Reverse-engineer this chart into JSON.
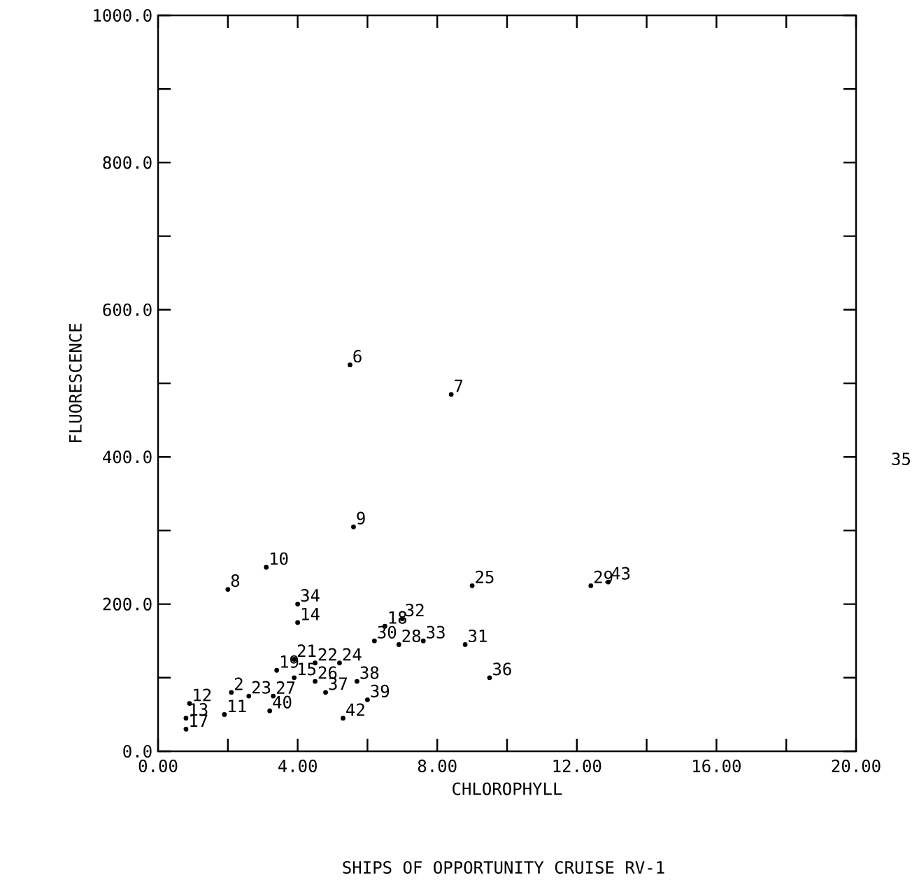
{
  "chart_data": {
    "type": "scatter",
    "title": "SHIPS OF OPPORTUNITY CRUISE  RV-1",
    "xlabel": "CHLOROPHYLL",
    "ylabel": "FLUORESCENCE",
    "marker": "circle",
    "grid": false,
    "xlim": [
      0,
      20
    ],
    "ylim": [
      0,
      1000
    ],
    "xticks": [
      {
        "value": 0,
        "label": "0.00"
      },
      {
        "value": 2,
        "label": null
      },
      {
        "value": 4,
        "label": "4.00"
      },
      {
        "value": 6,
        "label": null
      },
      {
        "value": 8,
        "label": "8.00"
      },
      {
        "value": 10,
        "label": null
      },
      {
        "value": 12,
        "label": "12.00"
      },
      {
        "value": 14,
        "label": null
      },
      {
        "value": 16,
        "label": "16.00"
      },
      {
        "value": 18,
        "label": null
      },
      {
        "value": 20,
        "label": "20.00"
      }
    ],
    "yticks": [
      {
        "value": 0,
        "label": "0.0"
      },
      {
        "value": 100,
        "label": null
      },
      {
        "value": 200,
        "label": "200.0"
      },
      {
        "value": 300,
        "label": null
      },
      {
        "value": 400,
        "label": "400.0"
      },
      {
        "value": 500,
        "label": null
      },
      {
        "value": 600,
        "label": "600.0"
      },
      {
        "value": 700,
        "label": null
      },
      {
        "value": 800,
        "label": "800.0"
      },
      {
        "value": 900,
        "label": null
      },
      {
        "value": 1000,
        "label": "1000.0"
      }
    ],
    "series": [
      {
        "color": "#000000",
        "x": [
          5.5,
          8.4,
          5.6,
          3.1,
          2.0,
          9.0,
          4.0,
          4.0,
          6.5,
          7.0,
          6.2,
          6.9,
          7.6,
          8.8,
          9.5,
          5.2,
          5.7,
          6.0,
          5.3,
          3.4,
          3.9,
          4.5,
          3.9,
          4.5,
          4.8,
          2.1,
          2.6,
          3.3,
          3.2,
          0.9,
          1.9,
          0.8,
          0.8,
          12.4,
          12.9
        ],
        "values": [
          525,
          485,
          305,
          250,
          220,
          225,
          200,
          175,
          170,
          180,
          150,
          145,
          150,
          145,
          100,
          120,
          95,
          70,
          45,
          110,
          125,
          120,
          100,
          95,
          80,
          80,
          75,
          75,
          55,
          65,
          50,
          45,
          30,
          225,
          230
        ]
      }
    ],
    "annotations": [
      {
        "text": "6",
        "x": 5.5,
        "y": 525
      },
      {
        "text": "7",
        "x": 8.4,
        "y": 485
      },
      {
        "text": "9",
        "x": 5.6,
        "y": 305
      },
      {
        "text": "10",
        "x": 3.1,
        "y": 250
      },
      {
        "text": "8",
        "x": 2.0,
        "y": 220
      },
      {
        "text": "25",
        "x": 9.0,
        "y": 225
      },
      {
        "text": "34",
        "x": 4.0,
        "y": 200
      },
      {
        "text": "14",
        "x": 4.0,
        "y": 175
      },
      {
        "text": "18",
        "x": 6.5,
        "y": 170
      },
      {
        "text": "32",
        "x": 7.0,
        "y": 180
      },
      {
        "text": "30",
        "x": 6.2,
        "y": 150
      },
      {
        "text": "28",
        "x": 6.9,
        "y": 145
      },
      {
        "text": "33",
        "x": 7.6,
        "y": 150
      },
      {
        "text": "31",
        "x": 8.8,
        "y": 145
      },
      {
        "text": "36",
        "x": 9.5,
        "y": 100
      },
      {
        "text": "24",
        "x": 5.2,
        "y": 120
      },
      {
        "text": "38",
        "x": 5.7,
        "y": 95
      },
      {
        "text": "39",
        "x": 6.0,
        "y": 70
      },
      {
        "text": "42",
        "x": 5.3,
        "y": 45
      },
      {
        "text": "19",
        "x": 3.4,
        "y": 110
      },
      {
        "text": "21",
        "x": 3.9,
        "y": 125
      },
      {
        "text": "22",
        "x": 4.5,
        "y": 120
      },
      {
        "text": "15",
        "x": 3.9,
        "y": 100
      },
      {
        "text": "26",
        "x": 4.5,
        "y": 95
      },
      {
        "text": "37",
        "x": 4.8,
        "y": 80
      },
      {
        "text": "2",
        "x": 2.1,
        "y": 80
      },
      {
        "text": "23",
        "x": 2.6,
        "y": 75
      },
      {
        "text": "27",
        "x": 3.3,
        "y": 75
      },
      {
        "text": "40",
        "x": 3.2,
        "y": 55
      },
      {
        "text": "12",
        "x": 0.9,
        "y": 65
      },
      {
        "text": "11",
        "x": 1.9,
        "y": 50
      },
      {
        "text": "13",
        "x": 0.8,
        "y": 45
      },
      {
        "text": "17",
        "x": 0.8,
        "y": 30
      },
      {
        "text": "29",
        "x": 12.4,
        "y": 225
      },
      {
        "text": "43",
        "x": 12.9,
        "y": 230
      },
      "35"
    ]
  }
}
